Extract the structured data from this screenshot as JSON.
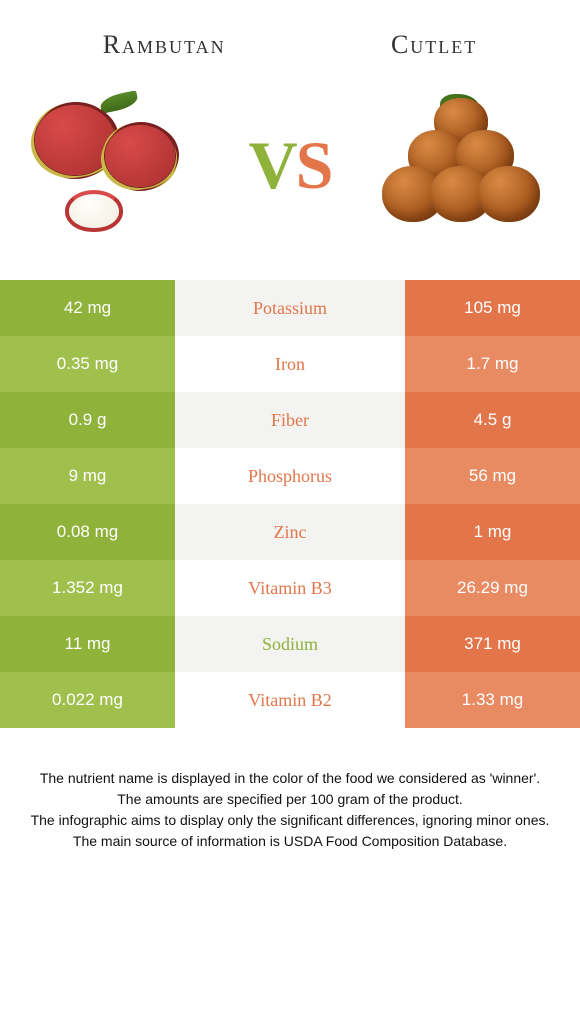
{
  "header": {
    "left": "Rambutan",
    "right": "Cutlet"
  },
  "vs": {
    "v": "V",
    "s": "S"
  },
  "colors": {
    "left_odd": "#8fb23a",
    "left_even": "#a0c04e",
    "right_odd": "#e2764a",
    "right_even": "#e88a62",
    "mid_left": "#8fb23a",
    "mid_right": "#e2764a"
  },
  "rows": [
    {
      "label": "Potassium",
      "left": "42 mg",
      "right": "105 mg",
      "winner": "right"
    },
    {
      "label": "Iron",
      "left": "0.35 mg",
      "right": "1.7 mg",
      "winner": "right"
    },
    {
      "label": "Fiber",
      "left": "0.9 g",
      "right": "4.5 g",
      "winner": "right"
    },
    {
      "label": "Phosphorus",
      "left": "9 mg",
      "right": "56 mg",
      "winner": "right"
    },
    {
      "label": "Zinc",
      "left": "0.08 mg",
      "right": "1 mg",
      "winner": "right"
    },
    {
      "label": "Vitamin B3",
      "left": "1.352 mg",
      "right": "26.29 mg",
      "winner": "right"
    },
    {
      "label": "Sodium",
      "left": "11 mg",
      "right": "371 mg",
      "winner": "left"
    },
    {
      "label": "Vitamin B2",
      "left": "0.022 mg",
      "right": "1.33 mg",
      "winner": "right"
    }
  ],
  "footer": [
    "The nutrient name is displayed in the color of the food we considered as 'winner'.",
    "The amounts are specified per 100 gram of the product.",
    "The infographic aims to display only the significant differences, ignoring minor ones.",
    "The main source of information is USDA Food Composition Database."
  ]
}
